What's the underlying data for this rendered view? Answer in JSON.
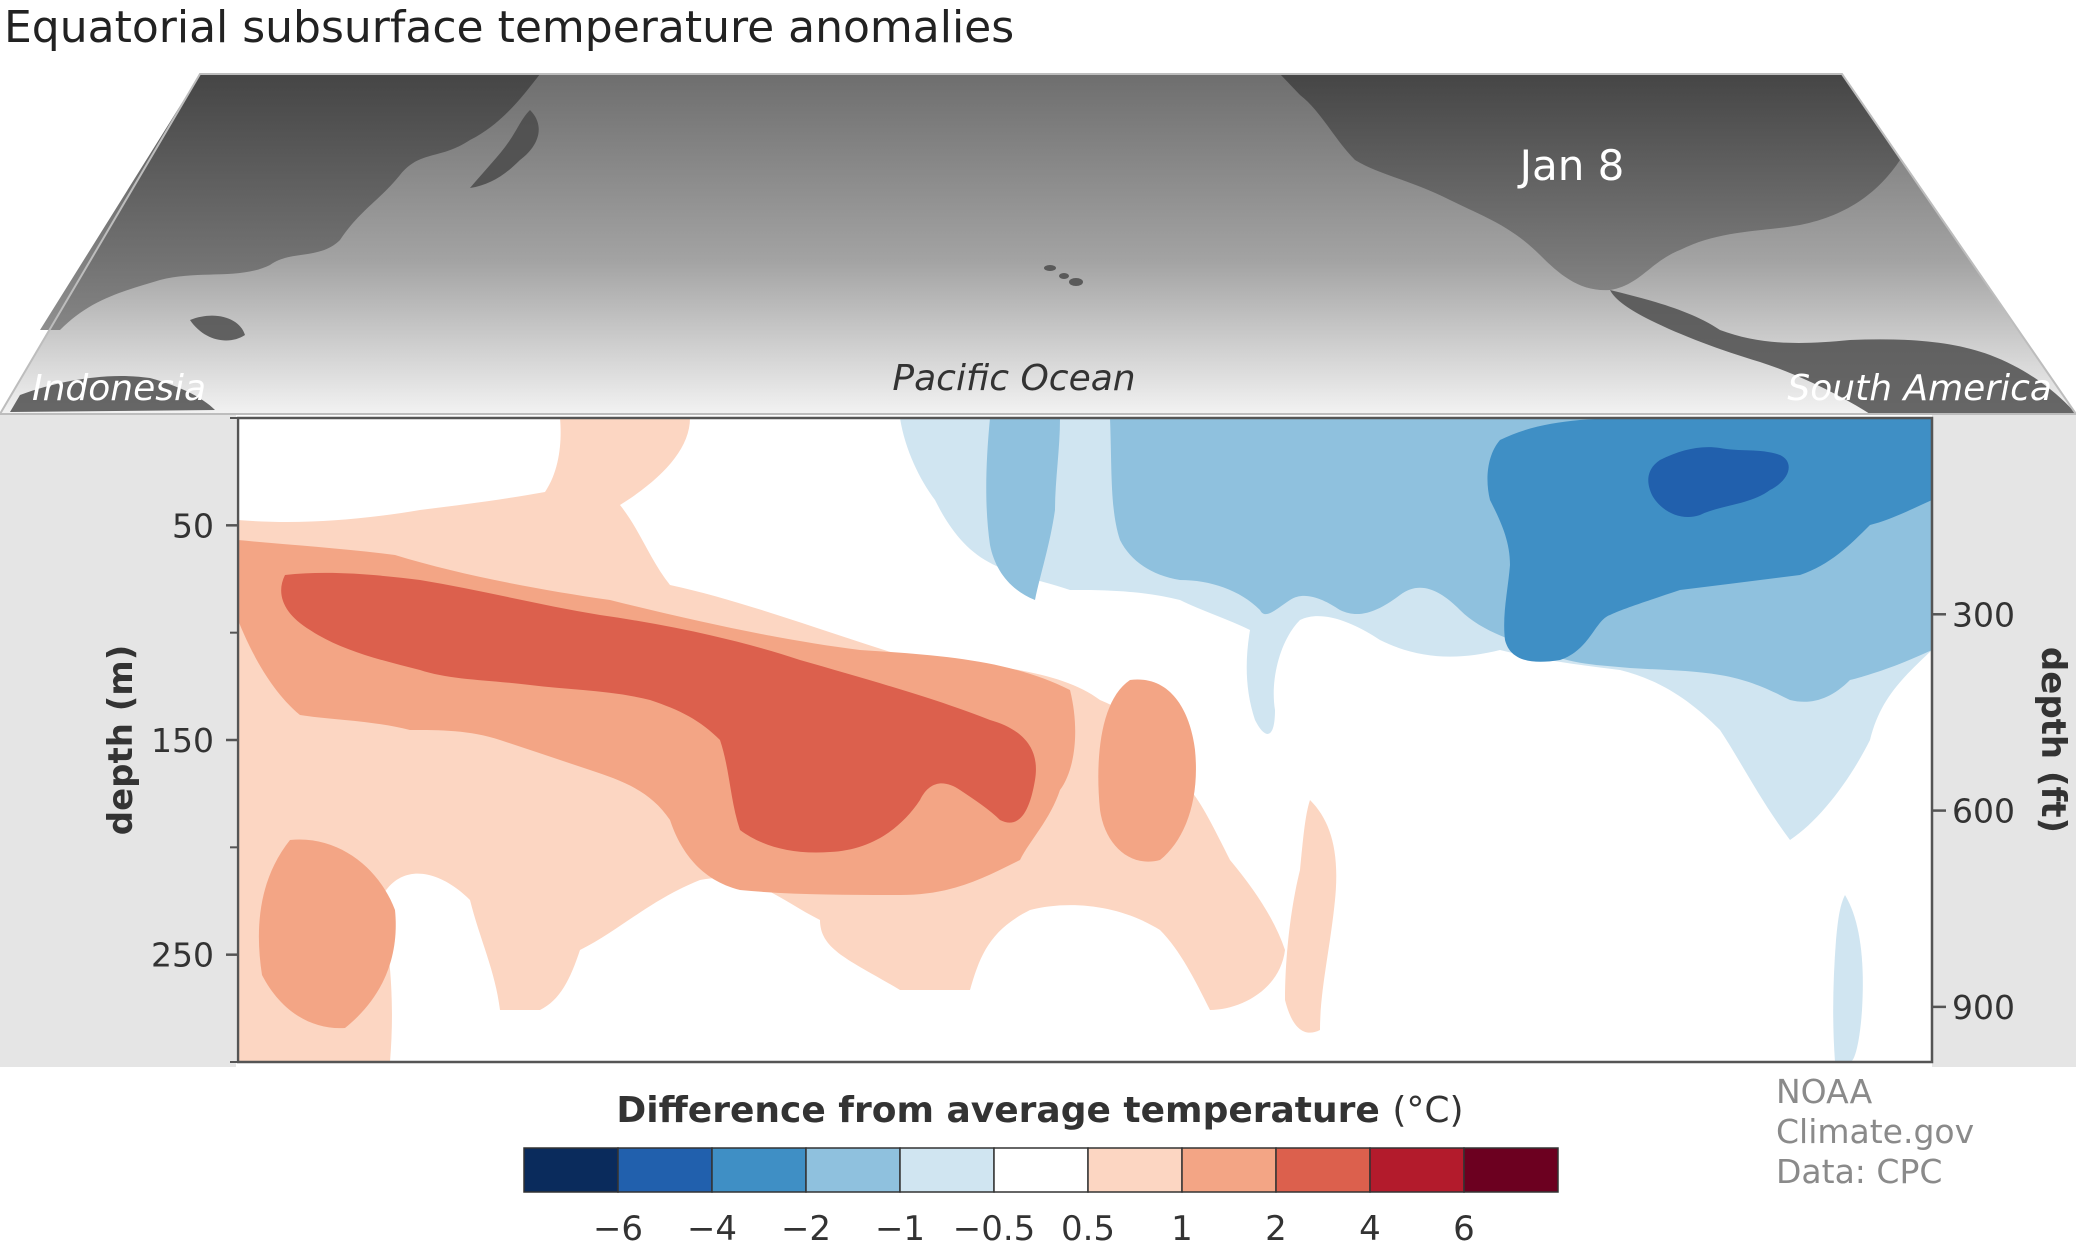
{
  "title": "Equatorial subsurface temperature anomalies",
  "map": {
    "date": "Jan 8",
    "left_label": "Indonesia",
    "center_label": "Pacific Ocean",
    "right_label": "South America"
  },
  "credit": {
    "line1": "NOAA Climate.gov",
    "line2": "Data: CPC"
  },
  "chart_data": {
    "type": "heatmap",
    "title": "Equatorial subsurface temperature anomalies",
    "date": "Jan 8",
    "x_extent": [
      "Indonesia",
      "South America"
    ],
    "ylabel_left": "depth (m)",
    "ylabel_right": "depth (ft)",
    "y_left_ticks": [
      50,
      150,
      250
    ],
    "y_right_ticks": [
      300,
      600,
      900
    ],
    "ylim": [
      0,
      300
    ],
    "colorbar": {
      "label": "Difference from average temperature",
      "unit": "(°C)",
      "tick_labels": [
        "−6",
        "−4",
        "−2",
        "−1",
        "−0.5",
        "0.5",
        "1",
        "2",
        "4",
        "6"
      ],
      "colors": [
        "#0a2b5c",
        "#2160ad",
        "#3f8fc5",
        "#8fc1de",
        "#d0e5f1",
        "#ffffff",
        "#fcd6c2",
        "#f3a585",
        "#dc604d",
        "#b31b2c",
        "#6c0020"
      ]
    },
    "regions_summary": [
      {
        "anomaly_class": "2 to 4",
        "area": "western-central Pacific, about 80–220 m, tilting deeper eastward"
      },
      {
        "anomaly_class": "-2 to -4",
        "area": "eastern Pacific, about 20–150 m"
      },
      {
        "anomaly_class": "-4 to -6",
        "area": "far eastern Pacific, about 30–60 m"
      }
    ]
  }
}
